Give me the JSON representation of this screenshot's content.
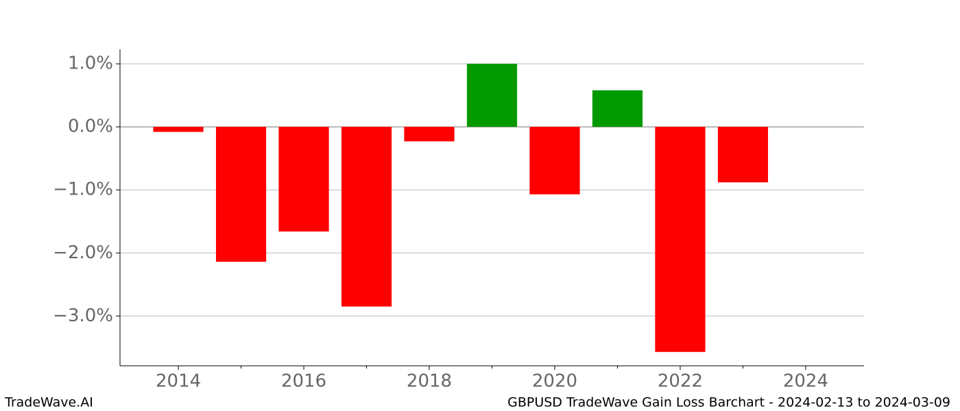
{
  "chart_data": {
    "type": "bar",
    "footer_left": "TradeWave.AI",
    "title": "GBPUSD TradeWave Gain Loss Barchart - 2024-02-13 to 2024-03-09",
    "x": [
      2014,
      2015,
      2016,
      2017,
      2018,
      2019,
      2020,
      2021,
      2022,
      2023
    ],
    "values": [
      -0.08,
      -2.14,
      -1.66,
      -2.85,
      -0.23,
      1.0,
      -1.07,
      0.58,
      -3.57,
      -0.88
    ],
    "colors": [
      "#ff0000",
      "#ff0000",
      "#ff0000",
      "#ff0000",
      "#ff0000",
      "#009900",
      "#ff0000",
      "#009900",
      "#ff0000",
      "#ff0000"
    ],
    "xlim": [
      2013.07,
      2024.93
    ],
    "xticks": [
      2014,
      2016,
      2018,
      2020,
      2022,
      2024
    ],
    "xminorticks": [
      2015,
      2017,
      2019,
      2021,
      2023
    ],
    "ylim": [
      -3.79,
      1.23
    ],
    "yticks": [
      {
        "value": 1.0,
        "label": "1.0%"
      },
      {
        "value": 0.0,
        "label": "0.0%"
      },
      {
        "value": -1.0,
        "label": "−1.0%"
      },
      {
        "value": -2.0,
        "label": "−2.0%"
      },
      {
        "value": -3.0,
        "label": "−3.0%"
      }
    ],
    "grid": true
  }
}
